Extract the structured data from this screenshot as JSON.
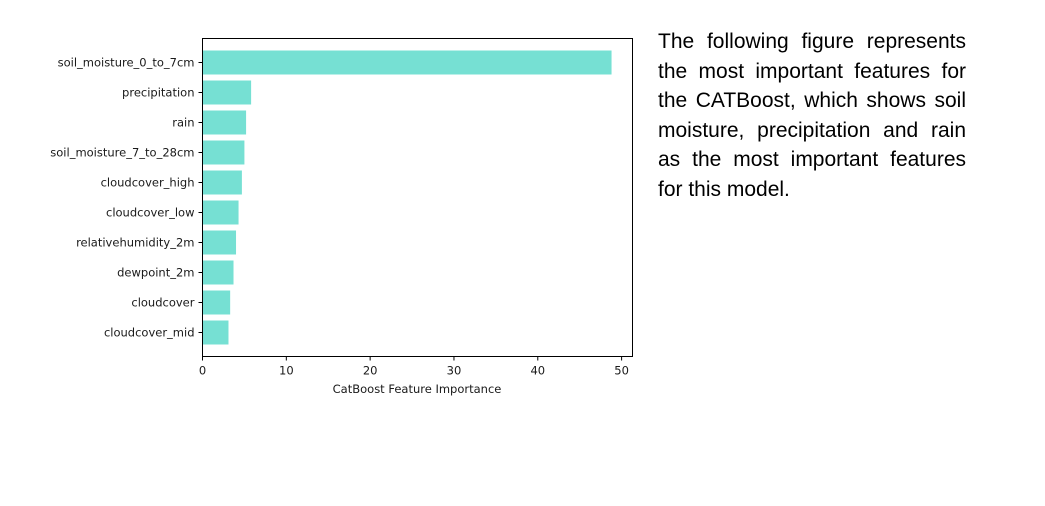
{
  "description": "The following figure represents the most important features for the CATBoost, which shows soil moisture, precipitation and rain as the most important features for this model.",
  "colors": {
    "bar": "#76e0d3",
    "axis": "#000000",
    "text": "#1a1a1a"
  },
  "chart_data": {
    "type": "bar",
    "orientation": "horizontal",
    "title": "",
    "xlabel": "CatBoost Feature Importance",
    "ylabel": "",
    "categories": [
      "soil_moisture_0_to_7cm",
      "precipitation",
      "rain",
      "soil_moisture_7_to_28cm",
      "cloudcover_high",
      "cloudcover_low",
      "relativehumidity_2m",
      "dewpoint_2m",
      "cloudcover",
      "cloudcover_mid"
    ],
    "values": [
      48.8,
      5.8,
      5.2,
      5.0,
      4.7,
      4.3,
      4.0,
      3.7,
      3.3,
      3.1
    ],
    "xlim": [
      0,
      51.3
    ],
    "xticks": [
      0,
      10,
      20,
      30,
      40,
      50
    ],
    "grid": false,
    "legend": "none"
  }
}
